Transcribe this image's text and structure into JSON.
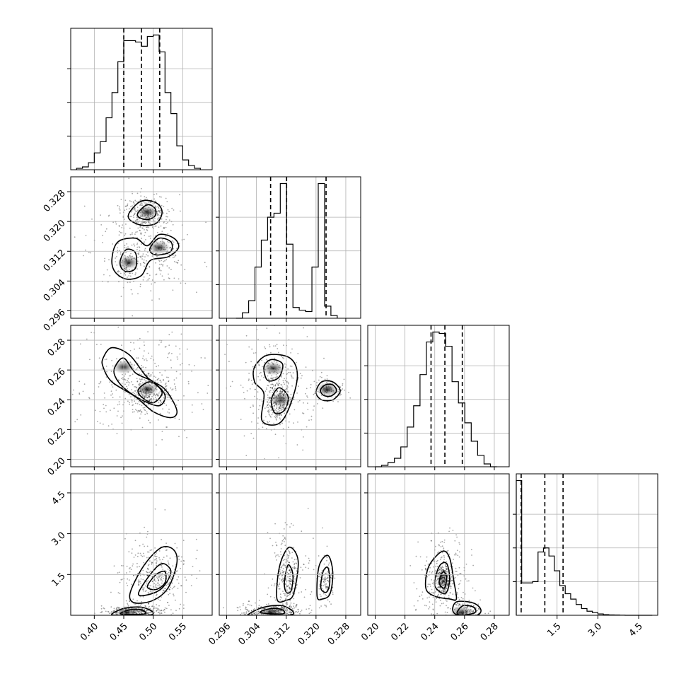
{
  "chart_data": {
    "type": "corner",
    "parameters": [
      {
        "range": [
          0.36,
          0.6
        ],
        "ticks": [
          0.4,
          0.45,
          0.5,
          0.55
        ],
        "tick_labels": [
          "0.40",
          "0.45",
          "0.50",
          "0.55"
        ],
        "quantiles": [
          0.45,
          0.48,
          0.511
        ],
        "hist": {
          "bins": [
            0.37,
            0.38,
            0.39,
            0.4,
            0.41,
            0.42,
            0.43,
            0.44,
            0.45,
            0.46,
            0.47,
            0.48,
            0.49,
            0.5,
            0.51,
            0.52,
            0.53,
            0.54,
            0.55,
            0.56,
            0.57,
            0.58
          ],
          "counts": [
            1,
            2,
            5,
            12,
            20,
            37,
            55,
            77,
            92,
            92,
            91,
            88,
            95,
            96,
            84,
            55,
            40,
            17,
            7,
            3,
            1
          ]
        }
      },
      {
        "range": [
          0.294,
          0.332
        ],
        "ticks": [
          0.296,
          0.304,
          0.312,
          0.32,
          0.328
        ],
        "tick_labels": [
          "0.296",
          "0.304",
          "0.312",
          "0.320",
          "0.328"
        ],
        "quantiles": [
          0.3078,
          0.3121,
          0.3227
        ],
        "hist": {
          "bins": [
            0.2985,
            0.3002,
            0.3019,
            0.3036,
            0.3053,
            0.307,
            0.3087,
            0.3104,
            0.3121,
            0.3138,
            0.3155,
            0.3172,
            0.3189,
            0.3206,
            0.3223,
            0.324,
            0.3257
          ],
          "counts": [
            0,
            4,
            13,
            38,
            58,
            75,
            78,
            100,
            55,
            8,
            6,
            5,
            38,
            100,
            9,
            2
          ]
        }
      },
      {
        "range": [
          0.195,
          0.29
        ],
        "ticks": [
          0.2,
          0.22,
          0.24,
          0.26,
          0.28
        ],
        "tick_labels": [
          "0.20",
          "0.22",
          "0.24",
          "0.26",
          "0.28"
        ],
        "quantiles": [
          0.2375,
          0.2468,
          0.2585
        ],
        "hist": {
          "bins": [
            0.2,
            0.2043,
            0.2086,
            0.2129,
            0.2172,
            0.2215,
            0.2258,
            0.2301,
            0.2344,
            0.2387,
            0.243,
            0.2473,
            0.2516,
            0.2559,
            0.2602,
            0.2645,
            0.2688,
            0.2731,
            0.2774,
            0.2817
          ],
          "counts": [
            0,
            1,
            3,
            6,
            14,
            28,
            43,
            65,
            88,
            95,
            94,
            85,
            60,
            45,
            31,
            18,
            8,
            2,
            0
          ]
        }
      },
      {
        "range": [
          0.0,
          5.2
        ],
        "ticks": [
          1.5,
          3.0,
          4.5
        ],
        "tick_labels": [
          "1.5",
          "3.0",
          "4.5"
        ],
        "quantiles": [
          0.18,
          1.05,
          1.72
        ],
        "hist": {
          "bins": [
            0.0,
            0.2,
            0.4,
            0.6,
            0.8,
            1.0,
            1.2,
            1.4,
            1.6,
            1.8,
            2.0,
            2.2,
            2.4,
            2.6,
            2.8,
            3.0,
            3.2,
            3.4,
            3.6,
            3.8,
            4.0,
            4.2,
            4.4,
            4.6,
            4.8,
            5.0
          ],
          "counts": [
            100,
            24,
            24,
            25,
            47,
            50,
            44,
            33,
            22,
            16,
            12,
            8,
            5,
            3,
            2,
            1,
            0.5,
            0.3,
            0.2,
            0.1,
            0,
            0,
            0,
            0,
            0
          ]
        }
      }
    ],
    "pairs": [
      {
        "x": 0,
        "y": 1,
        "levels": [
          [
            [
              0.46,
              0.3225
            ],
            [
              0.48,
              0.3255
            ],
            [
              0.505,
              0.325
            ],
            [
              0.515,
              0.3225
            ],
            [
              0.505,
              0.3195
            ],
            [
              0.48,
              0.319
            ],
            [
              0.46,
              0.3205
            ]
          ],
          [
            [
              0.475,
              0.3225
            ],
            [
              0.49,
              0.3245
            ],
            [
              0.503,
              0.3235
            ],
            [
              0.503,
              0.3215
            ],
            [
              0.49,
              0.3205
            ],
            [
              0.475,
              0.3212
            ]
          ],
          [
            [
              0.43,
              0.31
            ],
            [
              0.44,
              0.3145
            ],
            [
              0.47,
              0.3155
            ],
            [
              0.49,
              0.3135
            ],
            [
              0.51,
              0.3165
            ],
            [
              0.535,
              0.3155
            ],
            [
              0.543,
              0.313
            ],
            [
              0.525,
              0.3105
            ],
            [
              0.495,
              0.3095
            ],
            [
              0.48,
              0.3055
            ],
            [
              0.455,
              0.3045
            ],
            [
              0.435,
              0.3065
            ]
          ],
          [
            [
              0.445,
              0.31
            ],
            [
              0.455,
              0.3125
            ],
            [
              0.47,
              0.3115
            ],
            [
              0.47,
              0.3075
            ],
            [
              0.455,
              0.3065
            ],
            [
              0.445,
              0.3078
            ]
          ],
          [
            [
              0.495,
              0.313
            ],
            [
              0.51,
              0.3155
            ],
            [
              0.53,
              0.3145
            ],
            [
              0.53,
              0.312
            ],
            [
              0.51,
              0.311
            ],
            [
              0.497,
              0.3115
            ]
          ]
        ],
        "peaks": [
          [
            0.49,
            0.3225
          ],
          [
            0.51,
            0.313
          ],
          [
            0.458,
            0.309
          ]
        ]
      },
      {
        "x": 0,
        "y": 2,
        "levels": [
          [
            [
              0.415,
              0.268
            ],
            [
              0.43,
              0.275
            ],
            [
              0.46,
              0.27
            ],
            [
              0.49,
              0.255
            ],
            [
              0.52,
              0.247
            ],
            [
              0.54,
              0.233
            ],
            [
              0.53,
              0.228
            ],
            [
              0.5,
              0.232
            ],
            [
              0.47,
              0.242
            ],
            [
              0.43,
              0.252
            ],
            [
              0.415,
              0.262
            ]
          ],
          [
            [
              0.435,
              0.262
            ],
            [
              0.45,
              0.268
            ],
            [
              0.47,
              0.258
            ],
            [
              0.5,
              0.252
            ],
            [
              0.52,
              0.243
            ],
            [
              0.51,
              0.236
            ],
            [
              0.48,
              0.24
            ],
            [
              0.45,
              0.248
            ],
            [
              0.435,
              0.256
            ]
          ],
          [
            [
              0.475,
              0.247
            ],
            [
              0.495,
              0.252
            ],
            [
              0.515,
              0.245
            ],
            [
              0.5,
              0.238
            ],
            [
              0.48,
              0.242
            ]
          ]
        ],
        "peaks": [
          [
            0.49,
            0.247
          ],
          [
            0.45,
            0.262
          ]
        ]
      },
      {
        "x": 1,
        "y": 2,
        "levels": [
          [
            [
              0.3035,
              0.262
            ],
            [
              0.307,
              0.27
            ],
            [
              0.313,
              0.268
            ],
            [
              0.315,
              0.256
            ],
            [
              0.313,
              0.236
            ],
            [
              0.31,
              0.224
            ],
            [
              0.3055,
              0.226
            ],
            [
              0.306,
              0.244
            ],
            [
              0.3035,
              0.252
            ]
          ],
          [
            [
              0.306,
              0.262
            ],
            [
              0.308,
              0.267
            ],
            [
              0.311,
              0.264
            ],
            [
              0.31,
              0.255
            ],
            [
              0.307,
              0.253
            ]
          ],
          [
            [
              0.308,
              0.24
            ],
            [
              0.31,
              0.248
            ],
            [
              0.3125,
              0.242
            ],
            [
              0.3115,
              0.233
            ],
            [
              0.309,
              0.231
            ]
          ],
          [
            [
              0.32,
              0.245
            ],
            [
              0.3215,
              0.252
            ],
            [
              0.3245,
              0.252
            ],
            [
              0.3265,
              0.246
            ],
            [
              0.3245,
              0.24
            ],
            [
              0.3215,
              0.24
            ]
          ],
          [
            [
              0.3212,
              0.2465
            ],
            [
              0.3225,
              0.25
            ],
            [
              0.3245,
              0.25
            ],
            [
              0.3255,
              0.246
            ],
            [
              0.324,
              0.2425
            ],
            [
              0.322,
              0.243
            ]
          ]
        ],
        "peaks": [
          [
            0.323,
            0.247
          ],
          [
            0.3085,
            0.261
          ],
          [
            0.3105,
            0.24
          ]
        ]
      },
      {
        "x": 0,
        "y": 3,
        "levels": [
          [
            [
              0.43,
              0.05
            ],
            [
              0.45,
              0.25
            ],
            [
              0.48,
              0.3
            ],
            [
              0.5,
              0.1
            ],
            [
              0.49,
              0.0
            ],
            [
              0.44,
              0.0
            ]
          ],
          [
            [
              0.445,
              0.05
            ],
            [
              0.46,
              0.2
            ],
            [
              0.48,
              0.2
            ],
            [
              0.485,
              0.05
            ]
          ],
          [
            [
              0.46,
              0.7
            ],
            [
              0.47,
              1.3
            ],
            [
              0.49,
              2.0
            ],
            [
              0.515,
              2.5
            ],
            [
              0.535,
              2.4
            ],
            [
              0.54,
              1.9
            ],
            [
              0.525,
              1.0
            ],
            [
              0.5,
              0.55
            ],
            [
              0.47,
              0.45
            ]
          ],
          [
            [
              0.475,
              0.8
            ],
            [
              0.495,
              1.5
            ],
            [
              0.515,
              1.9
            ],
            [
              0.53,
              1.6
            ],
            [
              0.515,
              1.0
            ],
            [
              0.49,
              0.75
            ]
          ],
          [
            [
              0.49,
              1.05
            ],
            [
              0.505,
              1.5
            ],
            [
              0.52,
              1.6
            ],
            [
              0.52,
              1.2
            ],
            [
              0.505,
              0.95
            ]
          ]
        ],
        "peaks": [
          [
            0.455,
            0.1
          ]
        ]
      },
      {
        "x": 1,
        "y": 3,
        "levels": [
          [
            [
              0.302,
              0.05
            ],
            [
              0.306,
              0.3
            ],
            [
              0.311,
              0.35
            ],
            [
              0.314,
              0.1
            ],
            [
              0.312,
              0.0
            ],
            [
              0.303,
              0.0
            ]
          ],
          [
            [
              0.305,
              0.1
            ],
            [
              0.308,
              0.25
            ],
            [
              0.311,
              0.2
            ],
            [
              0.311,
              0.05
            ]
          ],
          [
            [
              0.3095,
              0.6
            ],
            [
              0.3102,
              1.8
            ],
            [
              0.3128,
              2.5
            ],
            [
              0.3152,
              2.0
            ],
            [
              0.314,
              0.8
            ],
            [
              0.312,
              0.55
            ]
          ],
          [
            [
              0.3115,
              1.2
            ],
            [
              0.3125,
              1.85
            ],
            [
              0.3138,
              1.5
            ],
            [
              0.3133,
              0.9
            ],
            [
              0.312,
              0.85
            ]
          ],
          [
            [
              0.3203,
              0.7
            ],
            [
              0.3208,
              1.8
            ],
            [
              0.3232,
              2.2
            ],
            [
              0.3245,
              1.6
            ],
            [
              0.3238,
              0.8
            ],
            [
              0.3218,
              0.6
            ]
          ],
          [
            [
              0.3213,
              1.0
            ],
            [
              0.3219,
              1.6
            ],
            [
              0.3232,
              1.75
            ],
            [
              0.3237,
              1.2
            ],
            [
              0.3228,
              0.85
            ]
          ]
        ],
        "peaks": [
          [
            0.308,
            0.1
          ]
        ]
      },
      {
        "x": 2,
        "y": 3,
        "levels": [
          [
            [
              0.234,
              1.0
            ],
            [
              0.236,
              1.8
            ],
            [
              0.245,
              2.35
            ],
            [
              0.25,
              2.1
            ],
            [
              0.253,
              1.2
            ],
            [
              0.2545,
              0.6
            ],
            [
              0.25,
              0.6
            ],
            [
              0.24,
              0.7
            ]
          ],
          [
            [
              0.24,
              1.1
            ],
            [
              0.243,
              1.8
            ],
            [
              0.248,
              1.9
            ],
            [
              0.25,
              1.3
            ],
            [
              0.247,
              0.8
            ]
          ],
          [
            [
              0.243,
              1.2
            ],
            [
              0.2455,
              1.6
            ],
            [
              0.248,
              1.4
            ],
            [
              0.2465,
              1.0
            ]
          ],
          [
            [
              0.252,
              0.2
            ],
            [
              0.255,
              0.5
            ],
            [
              0.266,
              0.45
            ],
            [
              0.271,
              0.2
            ],
            [
              0.268,
              0.0
            ],
            [
              0.256,
              0.0
            ]
          ],
          [
            [
              0.255,
              0.1
            ],
            [
              0.259,
              0.35
            ],
            [
              0.266,
              0.3
            ],
            [
              0.267,
              0.1
            ],
            [
              0.258,
              0.0
            ]
          ]
        ],
        "peaks": [
          [
            0.258,
            0.1
          ]
        ]
      }
    ]
  }
}
